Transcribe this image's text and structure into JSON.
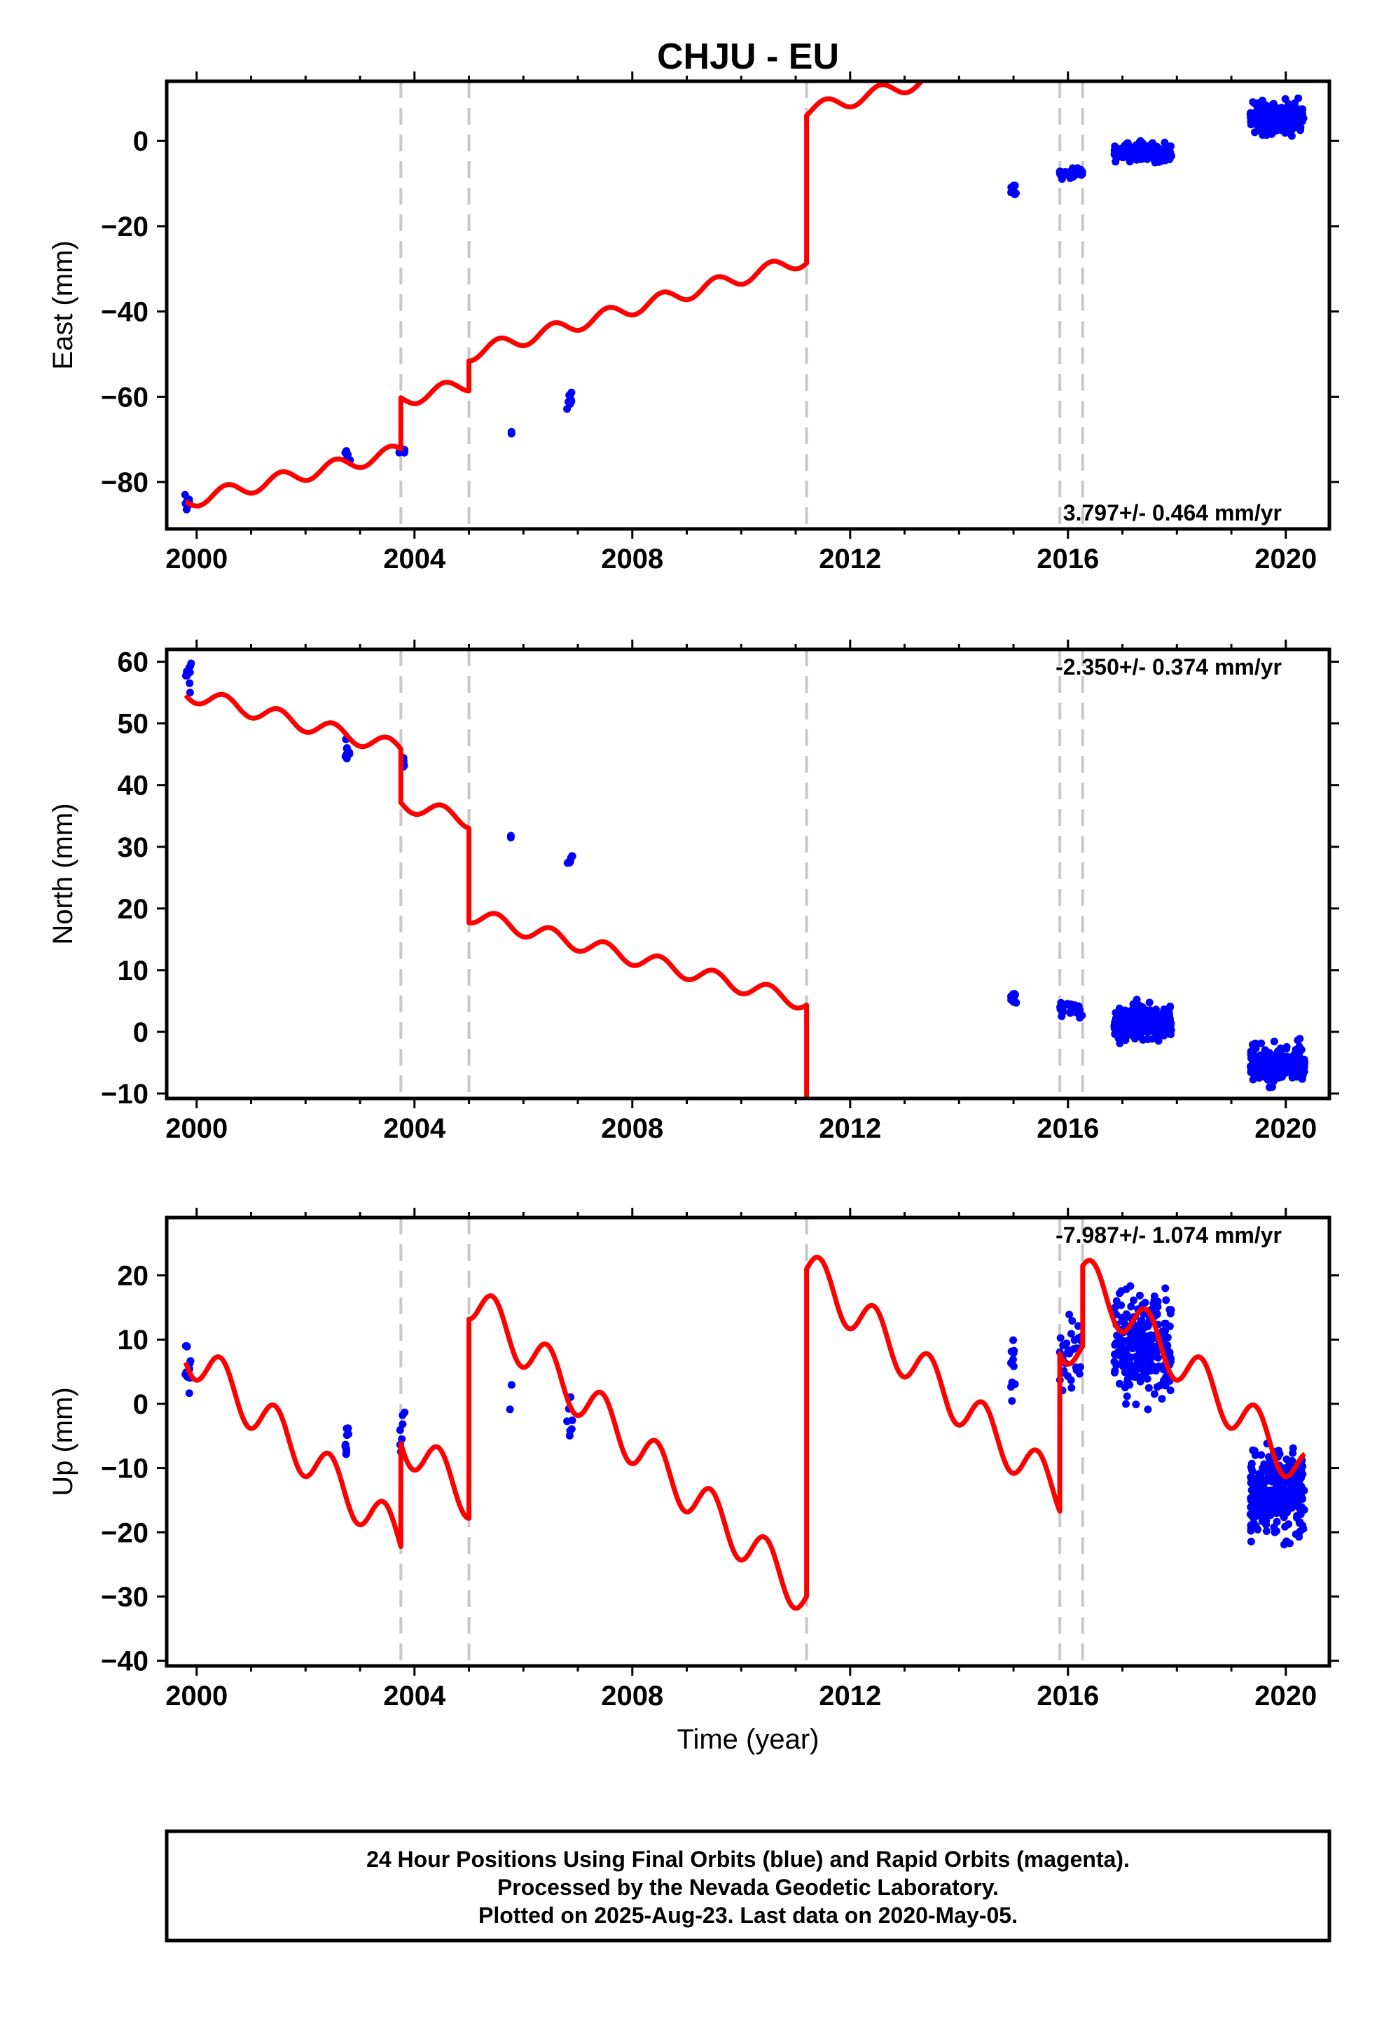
{
  "page": {
    "title": "CHJU - EU"
  },
  "colors": {
    "final": "#0000ff",
    "model": "#ff0000",
    "offset_line": "#c8c8c8"
  },
  "caption": {
    "line1": "24 Hour Positions Using Final Orbits (blue) and Rapid Orbits (magenta).",
    "line2": "Processed by the Nevada Geodetic Laboratory.",
    "line3": "Plotted on 2025-Aug-23. Last data on 2020-May-05."
  },
  "chart_data": [
    {
      "type": "scatter",
      "ylabel": "East (mm)",
      "xlabel": "",
      "xlim": [
        1999.45,
        2020.8
      ],
      "ylim": [
        -91,
        14
      ],
      "x_ticks": [
        2000,
        2004,
        2008,
        2012,
        2016,
        2020
      ],
      "y_ticks": [
        0,
        -20,
        -40,
        -60,
        -80
      ],
      "y_tick_labels": [
        "0",
        "−20",
        "−40",
        "−60",
        "−80"
      ],
      "rate_label": "3.797+/- 0.464 mm/yr",
      "rate_corner": "bottom-right",
      "offset_epochs": [
        2003.75,
        2005.0,
        2011.2,
        2015.85,
        2016.27
      ],
      "model_segments": [
        {
          "t0": 1999.8,
          "t1": 2003.75,
          "a": -84.0,
          "b": 3.0,
          "amp": 1.7,
          "phase": 0.3
        },
        {
          "t0": 2003.75,
          "t1": 2005.0,
          "a": -72.0,
          "b": 3.0,
          "amp": 1.7,
          "phase": 0.3
        },
        {
          "t0": 2005.0,
          "t1": 2011.2,
          "a": -68.0,
          "b": 3.6,
          "amp": 1.7,
          "phase": 0.3
        },
        {
          "t0": 2011.2,
          "t1": 2015.85,
          "a": -30.0,
          "b": 3.3,
          "amp": 1.7,
          "phase": 0.3
        },
        {
          "t0": 2015.85,
          "t1": 2016.27,
          "a": -11.0,
          "b": 3.5,
          "amp": 1.7,
          "phase": 0.3
        },
        {
          "t0": 2016.27,
          "t1": 2020.35,
          "a": -8.5,
          "b": 3.8,
          "amp": 1.7,
          "phase": 0.3
        }
      ],
      "point_groups": [
        {
          "t0": 1999.78,
          "t1": 1999.9,
          "n": 10,
          "c": -85.0,
          "s": 1.4,
          "lo": -89,
          "hi": -83
        },
        {
          "t0": 2002.72,
          "t1": 2002.82,
          "n": 8,
          "c": -74.0,
          "s": 0.9,
          "lo": -76,
          "hi": -72
        },
        {
          "t0": 2003.72,
          "t1": 2003.82,
          "n": 8,
          "c": -72.5,
          "s": 0.8,
          "lo": -74,
          "hi": -71
        },
        {
          "t0": 2005.75,
          "t1": 2005.8,
          "n": 2,
          "c": -68.5,
          "s": 0.3,
          "lo": -69,
          "hi": -68
        },
        {
          "t0": 2006.8,
          "t1": 2006.9,
          "n": 8,
          "c": -61.0,
          "s": 1.2,
          "lo": -63,
          "hi": -59
        },
        {
          "t0": 2014.95,
          "t1": 2015.05,
          "n": 10,
          "c": -12.0,
          "s": 1.2,
          "lo": -14,
          "hi": -9.5
        },
        {
          "t0": 2015.85,
          "t1": 2016.27,
          "n": 30,
          "c": -7.5,
          "s": 0.8,
          "lo": -9,
          "hi": -6
        },
        {
          "t0": 2016.85,
          "t1": 2017.9,
          "n": 220,
          "c": -2.5,
          "s": 1.5,
          "lo": -7,
          "hi": 4.5
        },
        {
          "t0": 2019.35,
          "t1": 2020.35,
          "n": 230,
          "c": 5.5,
          "s": 2.5,
          "lo": -3,
          "hi": 12
        }
      ]
    },
    {
      "type": "scatter",
      "ylabel": "North (mm)",
      "xlabel": "",
      "xlim": [
        1999.45,
        2020.8
      ],
      "ylim": [
        -10.8,
        62
      ],
      "x_ticks": [
        2000,
        2004,
        2008,
        2012,
        2016,
        2020
      ],
      "y_ticks": [
        60,
        50,
        40,
        30,
        20,
        10,
        0,
        -10
      ],
      "y_tick_labels": [
        "60",
        "50",
        "40",
        "30",
        "20",
        "10",
        "0",
        "−10"
      ],
      "rate_label": "-2.350+/- 0.374 mm/yr",
      "rate_corner": "top-right",
      "offset_epochs": [
        2003.75,
        2005.0,
        2011.2,
        2015.85,
        2016.27
      ],
      "model_segments": [
        {
          "t0": 1999.8,
          "t1": 2003.75,
          "a": 54.5,
          "b": -2.3,
          "amp": 1.3,
          "phase": 0.25
        },
        {
          "t0": 2003.75,
          "t1": 2005.0,
          "a": 45.8,
          "b": -2.3,
          "amp": 1.3,
          "phase": 0.25
        },
        {
          "t0": 2005.0,
          "t1": 2011.2,
          "a": 30.5,
          "b": -2.3,
          "amp": 1.3,
          "phase": 0.25
        },
        {
          "t0": 2011.2,
          "t1": 2015.85,
          "a": 12.0,
          "b": -2.3,
          "amp": 1.3,
          "phase": 0.25
        },
        {
          "t0": 2015.85,
          "t1": 2016.27,
          "a": 4.3,
          "b": -2.3,
          "amp": 1.3,
          "phase": 0.25
        },
        {
          "t0": 2016.27,
          "t1": 2020.35,
          "a": 3.5,
          "b": -2.3,
          "amp": 1.3,
          "phase": 0.25
        }
      ],
      "point_groups": [
        {
          "t0": 1999.78,
          "t1": 1999.9,
          "n": 10,
          "c": 57.5,
          "s": 1.8,
          "lo": 55,
          "hi": 60.5
        },
        {
          "t0": 2002.72,
          "t1": 2002.82,
          "n": 8,
          "c": 45.5,
          "s": 1.8,
          "lo": 43,
          "hi": 48
        },
        {
          "t0": 2003.72,
          "t1": 2003.82,
          "n": 8,
          "c": 43.5,
          "s": 0.8,
          "lo": 42.5,
          "hi": 45
        },
        {
          "t0": 2005.75,
          "t1": 2005.8,
          "n": 2,
          "c": 31.5,
          "s": 0.4,
          "lo": 31,
          "hi": 32.5
        },
        {
          "t0": 2006.8,
          "t1": 2006.9,
          "n": 8,
          "c": 28.0,
          "s": 0.6,
          "lo": 27,
          "hi": 29
        },
        {
          "t0": 2014.95,
          "t1": 2015.05,
          "n": 10,
          "c": 5.5,
          "s": 0.6,
          "lo": 4.5,
          "hi": 6.5
        },
        {
          "t0": 2015.85,
          "t1": 2016.27,
          "n": 30,
          "c": 3.5,
          "s": 1.0,
          "lo": 1.5,
          "hi": 5.5
        },
        {
          "t0": 2016.85,
          "t1": 2017.9,
          "n": 220,
          "c": 1.5,
          "s": 1.8,
          "lo": -2.5,
          "hi": 7.5
        },
        {
          "t0": 2019.35,
          "t1": 2020.35,
          "n": 230,
          "c": -5.0,
          "s": 2.0,
          "lo": -9,
          "hi": 6
        }
      ]
    },
    {
      "type": "scatter",
      "ylabel": "Up (mm)",
      "xlabel": "Time (year)",
      "xlim": [
        1999.45,
        2020.8
      ],
      "ylim": [
        -40.8,
        29
      ],
      "x_ticks": [
        2000,
        2004,
        2008,
        2012,
        2016,
        2020
      ],
      "y_ticks": [
        20,
        10,
        0,
        -10,
        -20,
        -30,
        -40
      ],
      "y_tick_labels": [
        "20",
        "10",
        "0",
        "−10",
        "−20",
        "−30",
        "−40"
      ],
      "rate_label": "-7.987+/- 1.074 mm/yr",
      "rate_corner": "top-right",
      "offset_epochs": [
        2003.75,
        2005.0,
        2011.2,
        2015.85,
        2016.27
      ],
      "model_segments": [
        {
          "t0": 1999.8,
          "t1": 2003.75,
          "a": 7.0,
          "b": -7.5,
          "amp": 3.5,
          "phase": 0.2
        },
        {
          "t0": 2003.75,
          "t1": 2005.0,
          "a": 23.0,
          "b": -7.5,
          "amp": 3.5,
          "phase": 0.2
        },
        {
          "t0": 2005.0,
          "t1": 2011.2,
          "a": 54.0,
          "b": -7.5,
          "amp": 3.5,
          "phase": 0.2
        },
        {
          "t0": 2011.2,
          "t1": 2015.85,
          "a": 105.0,
          "b": -7.5,
          "amp": 3.5,
          "phase": 0.2
        },
        {
          "t0": 2015.85,
          "t1": 2016.27,
          "a": 129.5,
          "b": -7.5,
          "amp": 3.5,
          "phase": 0.2
        },
        {
          "t0": 2016.27,
          "t1": 2020.35,
          "a": 142.0,
          "b": -7.5,
          "amp": 3.5,
          "phase": 0.2
        }
      ],
      "point_groups": [
        {
          "t0": 1999.78,
          "t1": 1999.9,
          "n": 12,
          "c": 4.0,
          "s": 3.0,
          "lo": -1,
          "hi": 9
        },
        {
          "t0": 2002.72,
          "t1": 2002.82,
          "n": 10,
          "c": -5.0,
          "s": 2.5,
          "lo": -9,
          "hi": -1
        },
        {
          "t0": 2003.72,
          "t1": 2003.82,
          "n": 8,
          "c": -5.0,
          "s": 3.0,
          "lo": -9.5,
          "hi": 0
        },
        {
          "t0": 2005.75,
          "t1": 2005.8,
          "n": 2,
          "c": 1.5,
          "s": 3.0,
          "lo": -2,
          "hi": 4.5
        },
        {
          "t0": 2006.8,
          "t1": 2006.9,
          "n": 8,
          "c": -1.0,
          "s": 4.0,
          "lo": -9,
          "hi": 7.5
        },
        {
          "t0": 2014.95,
          "t1": 2015.05,
          "n": 12,
          "c": 5.0,
          "s": 5.0,
          "lo": -3,
          "hi": 15
        },
        {
          "t0": 2015.85,
          "t1": 2016.27,
          "n": 35,
          "c": 7.0,
          "s": 5.0,
          "lo": -3,
          "hi": 18
        },
        {
          "t0": 2016.85,
          "t1": 2017.9,
          "n": 240,
          "c": 9.0,
          "s": 5.5,
          "lo": -10.5,
          "hi": 27
        },
        {
          "t0": 2019.35,
          "t1": 2020.35,
          "n": 260,
          "c": -14.0,
          "s": 4.5,
          "lo": -40,
          "hi": 6.5
        }
      ]
    }
  ]
}
